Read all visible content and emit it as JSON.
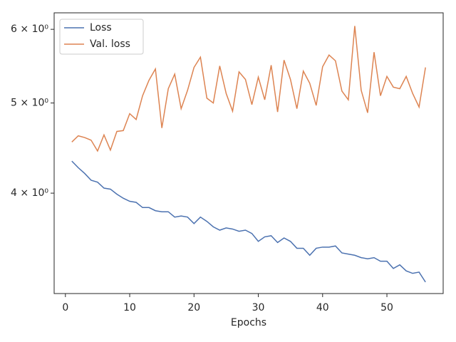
{
  "chart_data": {
    "type": "line",
    "xlabel": "Epochs",
    "x": [
      1,
      2,
      3,
      4,
      5,
      6,
      7,
      8,
      9,
      10,
      11,
      12,
      13,
      14,
      15,
      16,
      17,
      18,
      19,
      20,
      21,
      22,
      23,
      24,
      25,
      26,
      27,
      28,
      29,
      30,
      31,
      32,
      33,
      34,
      35,
      36,
      37,
      38,
      39,
      40,
      41,
      42,
      43,
      44,
      45,
      46,
      47,
      48,
      49,
      50,
      51,
      52,
      53,
      54,
      55,
      56
    ],
    "series": [
      {
        "name": "Loss",
        "color": "#4c72b0",
        "values": [
          4.33,
          4.26,
          4.2,
          4.13,
          4.11,
          4.05,
          4.04,
          3.99,
          3.95,
          3.92,
          3.91,
          3.86,
          3.86,
          3.83,
          3.82,
          3.82,
          3.77,
          3.78,
          3.77,
          3.71,
          3.77,
          3.73,
          3.68,
          3.65,
          3.67,
          3.66,
          3.64,
          3.65,
          3.62,
          3.55,
          3.59,
          3.6,
          3.54,
          3.58,
          3.55,
          3.49,
          3.49,
          3.43,
          3.49,
          3.5,
          3.5,
          3.51,
          3.45,
          3.44,
          3.43,
          3.41,
          3.4,
          3.41,
          3.38,
          3.38,
          3.32,
          3.35,
          3.3,
          3.28,
          3.29,
          3.21
        ]
      },
      {
        "name": "Val. loss",
        "color": "#dd8452",
        "values": [
          4.54,
          4.61,
          4.59,
          4.56,
          4.44,
          4.62,
          4.45,
          4.66,
          4.67,
          4.87,
          4.8,
          5.09,
          5.29,
          5.44,
          4.7,
          5.18,
          5.37,
          4.93,
          5.16,
          5.46,
          5.6,
          5.06,
          5.0,
          5.48,
          5.12,
          4.9,
          5.4,
          5.3,
          4.98,
          5.33,
          5.04,
          5.49,
          4.89,
          5.56,
          5.3,
          4.93,
          5.41,
          5.25,
          4.97,
          5.47,
          5.63,
          5.55,
          5.15,
          5.04,
          6.05,
          5.16,
          4.88,
          5.67,
          5.09,
          5.34,
          5.2,
          5.18,
          5.34,
          5.12,
          4.95,
          5.46
        ]
      }
    ],
    "xlim": [
      -1.75,
      58.75
    ],
    "xticks": [
      0,
      10,
      20,
      30,
      40,
      50
    ],
    "ylim": [
      3.12,
      6.25
    ],
    "yscale": "log",
    "yticks": [
      {
        "value": 4,
        "label": "4 × 10⁰"
      },
      {
        "value": 5,
        "label": "5 × 10⁰"
      },
      {
        "value": 6,
        "label": "6 × 10⁰"
      }
    ],
    "legend": "upper left"
  }
}
